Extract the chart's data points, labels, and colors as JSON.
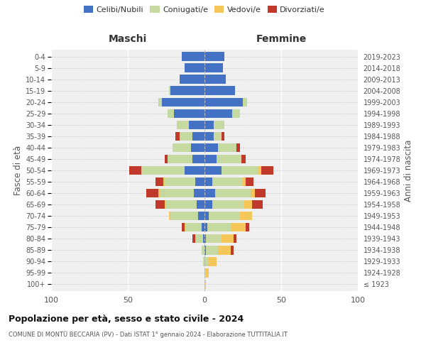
{
  "age_groups": [
    "100+",
    "95-99",
    "90-94",
    "85-89",
    "80-84",
    "75-79",
    "70-74",
    "65-69",
    "60-64",
    "55-59",
    "50-54",
    "45-49",
    "40-44",
    "35-39",
    "30-34",
    "25-29",
    "20-24",
    "15-19",
    "10-14",
    "5-9",
    "0-4"
  ],
  "birth_years": [
    "≤ 1923",
    "1924-1928",
    "1929-1933",
    "1934-1938",
    "1939-1943",
    "1944-1948",
    "1949-1953",
    "1954-1958",
    "1959-1963",
    "1964-1968",
    "1969-1973",
    "1974-1978",
    "1979-1983",
    "1984-1988",
    "1989-1993",
    "1994-1998",
    "1999-2003",
    "2004-2008",
    "2009-2013",
    "2014-2018",
    "2019-2023"
  ],
  "colors": {
    "celibi": "#4472c4",
    "coniugati": "#c5d9a0",
    "vedovi": "#f5c75a",
    "divorziati": "#c0392b"
  },
  "maschi": {
    "celibi": [
      0,
      0,
      0,
      0,
      1,
      2,
      4,
      5,
      7,
      6,
      13,
      8,
      9,
      8,
      10,
      20,
      28,
      22,
      16,
      13,
      15
    ],
    "coniugati": [
      0,
      0,
      1,
      2,
      5,
      10,
      18,
      20,
      22,
      20,
      28,
      16,
      12,
      8,
      8,
      4,
      2,
      1,
      0,
      0,
      0
    ],
    "vedovi": [
      0,
      0,
      0,
      0,
      0,
      1,
      1,
      1,
      1,
      1,
      0,
      0,
      0,
      0,
      0,
      0,
      0,
      0,
      0,
      0,
      0
    ],
    "divorziati": [
      0,
      0,
      0,
      0,
      2,
      2,
      0,
      6,
      8,
      5,
      8,
      2,
      0,
      3,
      0,
      0,
      0,
      0,
      0,
      0,
      0
    ]
  },
  "femmine": {
    "celibi": [
      0,
      0,
      0,
      1,
      1,
      2,
      3,
      5,
      7,
      5,
      11,
      8,
      9,
      6,
      6,
      18,
      25,
      20,
      14,
      12,
      13
    ],
    "coniugati": [
      0,
      1,
      3,
      8,
      10,
      15,
      20,
      21,
      23,
      20,
      24,
      16,
      12,
      5,
      7,
      5,
      3,
      0,
      0,
      0,
      0
    ],
    "vedovi": [
      1,
      2,
      5,
      8,
      8,
      10,
      8,
      5,
      3,
      2,
      2,
      0,
      0,
      0,
      0,
      0,
      0,
      0,
      0,
      0,
      0
    ],
    "divorziati": [
      0,
      0,
      0,
      2,
      2,
      2,
      0,
      7,
      7,
      5,
      8,
      3,
      2,
      2,
      0,
      0,
      0,
      0,
      0,
      0,
      0
    ]
  },
  "title": "Popolazione per età, sesso e stato civile - 2024",
  "subtitle": "COMUNE DI MONTÜ BECCARIA (PV) - Dati ISTAT 1° gennaio 2024 - Elaborazione TUTTITALIA.IT",
  "xlabel_maschi": "Maschi",
  "xlabel_femmine": "Femmine",
  "ylabel_left": "Fasce di età",
  "ylabel_right": "Anni di nascita",
  "xlim": 100,
  "legend_labels": [
    "Celibi/Nubili",
    "Coniugati/e",
    "Vedovi/e",
    "Divorziati/e"
  ],
  "bg_color": "#f0f0f0"
}
